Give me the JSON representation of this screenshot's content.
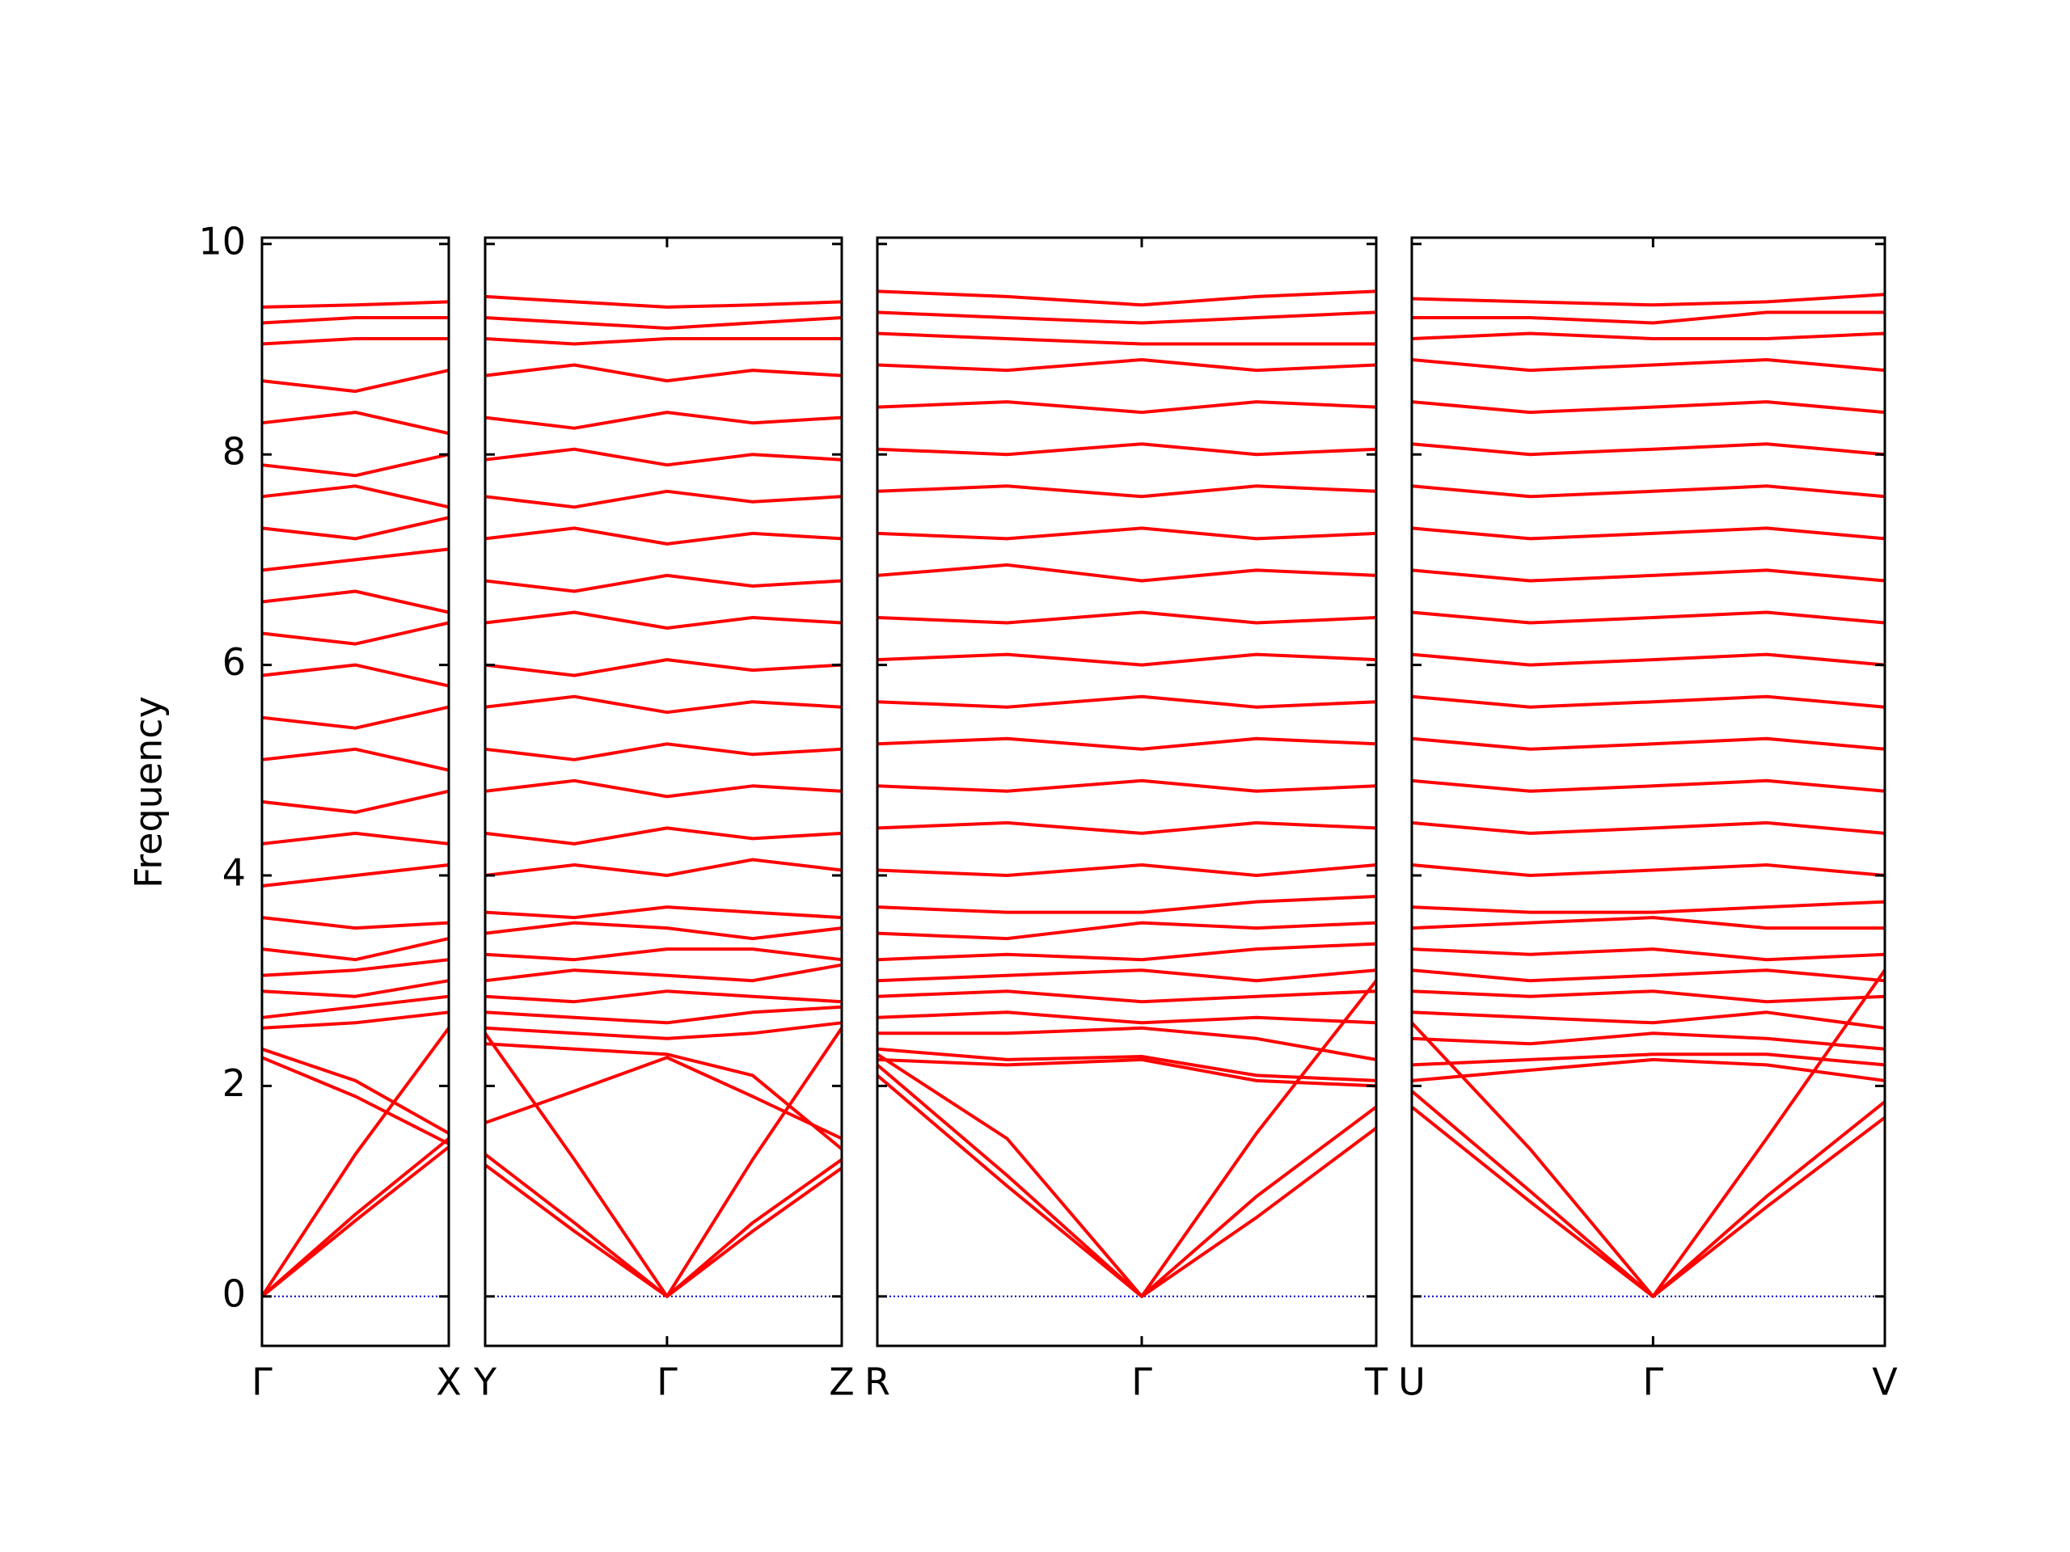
{
  "chart_data": {
    "type": "line",
    "y_label": "Frequency",
    "color": "#ff0000",
    "ylim": [
      -0.47,
      10.06
    ],
    "yticks": [
      0,
      2,
      4,
      6,
      8,
      10
    ],
    "hline": 0,
    "hline_color": "#0000cd",
    "panels": [
      {
        "x": [
          0,
          0.5,
          1
        ],
        "xticks": [
          {
            "value": 0,
            "label": "Γ"
          },
          {
            "value": 1,
            "label": "X"
          }
        ],
        "series": [
          {
            "values": [
              0,
              0.72,
              1.42
            ]
          },
          {
            "values": [
              0,
              0.78,
              1.5
            ]
          },
          {
            "values": [
              0,
              1.35,
              2.55
            ]
          },
          {
            "values": [
              2.27,
              1.9,
              1.45
            ]
          },
          {
            "values": [
              2.35,
              2.05,
              1.55
            ]
          },
          {
            "values": [
              2.55,
              2.6,
              2.7
            ]
          },
          {
            "values": [
              2.65,
              2.75,
              2.85
            ]
          },
          {
            "values": [
              2.9,
              2.85,
              3.0
            ]
          },
          {
            "values": [
              3.05,
              3.1,
              3.2
            ]
          },
          {
            "values": [
              3.3,
              3.2,
              3.4
            ]
          },
          {
            "values": [
              3.6,
              3.5,
              3.55
            ]
          },
          {
            "values": [
              3.9,
              4.0,
              4.1
            ]
          },
          {
            "values": [
              4.3,
              4.4,
              4.3
            ]
          },
          {
            "values": [
              4.7,
              4.6,
              4.8
            ]
          },
          {
            "values": [
              5.1,
              5.2,
              5.0
            ]
          },
          {
            "values": [
              5.5,
              5.4,
              5.6
            ]
          },
          {
            "values": [
              5.9,
              6.0,
              5.8
            ]
          },
          {
            "values": [
              6.3,
              6.2,
              6.4
            ]
          },
          {
            "values": [
              6.6,
              6.7,
              6.5
            ]
          },
          {
            "values": [
              6.9,
              7.0,
              7.1
            ]
          },
          {
            "values": [
              7.3,
              7.2,
              7.4
            ]
          },
          {
            "values": [
              7.6,
              7.7,
              7.5
            ]
          },
          {
            "values": [
              7.9,
              7.8,
              8.0
            ]
          },
          {
            "values": [
              8.3,
              8.4,
              8.2
            ]
          },
          {
            "values": [
              8.7,
              8.6,
              8.8
            ]
          },
          {
            "values": [
              9.05,
              9.1,
              9.1
            ]
          },
          {
            "values": [
              9.25,
              9.3,
              9.3
            ]
          },
          {
            "values": [
              9.4,
              9.42,
              9.45
            ]
          }
        ]
      },
      {
        "x": [
          0,
          0.25,
          0.51,
          0.75,
          1
        ],
        "xticks": [
          {
            "value": 0,
            "label": "Y"
          },
          {
            "value": 0.51,
            "label": "Γ"
          },
          {
            "value": 1,
            "label": "Z"
          }
        ],
        "series": [
          {
            "values": [
              1.25,
              0.62,
              0,
              0.62,
              1.22
            ]
          },
          {
            "values": [
              1.35,
              0.7,
              0,
              0.7,
              1.3
            ]
          },
          {
            "values": [
              2.5,
              1.3,
              0,
              1.3,
              2.55
            ]
          },
          {
            "values": [
              1.65,
              1.95,
              2.27,
              1.9,
              1.5
            ]
          },
          {
            "values": [
              2.4,
              2.35,
              2.3,
              2.1,
              1.4
            ]
          },
          {
            "values": [
              2.55,
              2.5,
              2.45,
              2.5,
              2.6
            ]
          },
          {
            "values": [
              2.7,
              2.65,
              2.6,
              2.7,
              2.75
            ]
          },
          {
            "values": [
              2.85,
              2.8,
              2.9,
              2.85,
              2.8
            ]
          },
          {
            "values": [
              3.0,
              3.1,
              3.05,
              3.0,
              3.15
            ]
          },
          {
            "values": [
              3.25,
              3.2,
              3.3,
              3.3,
              3.2
            ]
          },
          {
            "values": [
              3.45,
              3.55,
              3.5,
              3.4,
              3.5
            ]
          },
          {
            "values": [
              3.65,
              3.6,
              3.7,
              3.65,
              3.6
            ]
          },
          {
            "values": [
              4.0,
              4.1,
              4.0,
              4.15,
              4.05
            ]
          },
          {
            "values": [
              4.4,
              4.3,
              4.45,
              4.35,
              4.4
            ]
          },
          {
            "values": [
              4.8,
              4.9,
              4.75,
              4.85,
              4.8
            ]
          },
          {
            "values": [
              5.2,
              5.1,
              5.25,
              5.15,
              5.2
            ]
          },
          {
            "values": [
              5.6,
              5.7,
              5.55,
              5.65,
              5.6
            ]
          },
          {
            "values": [
              6.0,
              5.9,
              6.05,
              5.95,
              6.0
            ]
          },
          {
            "values": [
              6.4,
              6.5,
              6.35,
              6.45,
              6.4
            ]
          },
          {
            "values": [
              6.8,
              6.7,
              6.85,
              6.75,
              6.8
            ]
          },
          {
            "values": [
              7.2,
              7.3,
              7.15,
              7.25,
              7.2
            ]
          },
          {
            "values": [
              7.6,
              7.5,
              7.65,
              7.55,
              7.6
            ]
          },
          {
            "values": [
              7.95,
              8.05,
              7.9,
              8.0,
              7.95
            ]
          },
          {
            "values": [
              8.35,
              8.25,
              8.4,
              8.3,
              8.35
            ]
          },
          {
            "values": [
              8.75,
              8.85,
              8.7,
              8.8,
              8.75
            ]
          },
          {
            "values": [
              9.1,
              9.05,
              9.1,
              9.1,
              9.1
            ]
          },
          {
            "values": [
              9.3,
              9.25,
              9.2,
              9.25,
              9.3
            ]
          },
          {
            "values": [
              9.5,
              9.45,
              9.4,
              9.42,
              9.45
            ]
          }
        ]
      },
      {
        "x": [
          0,
          0.26,
          0.53,
          0.76,
          1
        ],
        "xticks": [
          {
            "value": 0,
            "label": "R"
          },
          {
            "value": 0.53,
            "label": "Γ"
          },
          {
            "value": 1,
            "label": "T"
          }
        ],
        "series": [
          {
            "values": [
              2.1,
              1.05,
              0,
              0.75,
              1.6
            ]
          },
          {
            "values": [
              2.2,
              1.15,
              0,
              0.95,
              1.8
            ]
          },
          {
            "values": [
              2.3,
              1.5,
              0,
              1.55,
              3.0
            ]
          },
          {
            "values": [
              2.25,
              2.2,
              2.25,
              2.05,
              2.0
            ]
          },
          {
            "values": [
              2.35,
              2.25,
              2.28,
              2.1,
              2.05
            ]
          },
          {
            "values": [
              2.5,
              2.5,
              2.55,
              2.45,
              2.25
            ]
          },
          {
            "values": [
              2.65,
              2.7,
              2.6,
              2.65,
              2.6
            ]
          },
          {
            "values": [
              2.85,
              2.9,
              2.8,
              2.85,
              2.9
            ]
          },
          {
            "values": [
              3.0,
              3.05,
              3.1,
              3.0,
              3.1
            ]
          },
          {
            "values": [
              3.2,
              3.25,
              3.2,
              3.3,
              3.35
            ]
          },
          {
            "values": [
              3.45,
              3.4,
              3.55,
              3.5,
              3.55
            ]
          },
          {
            "values": [
              3.7,
              3.65,
              3.65,
              3.75,
              3.8
            ]
          },
          {
            "values": [
              4.05,
              4.0,
              4.1,
              4.0,
              4.1
            ]
          },
          {
            "values": [
              4.45,
              4.5,
              4.4,
              4.5,
              4.45
            ]
          },
          {
            "values": [
              4.85,
              4.8,
              4.9,
              4.8,
              4.85
            ]
          },
          {
            "values": [
              5.25,
              5.3,
              5.2,
              5.3,
              5.25
            ]
          },
          {
            "values": [
              5.65,
              5.6,
              5.7,
              5.6,
              5.65
            ]
          },
          {
            "values": [
              6.05,
              6.1,
              6.0,
              6.1,
              6.05
            ]
          },
          {
            "values": [
              6.45,
              6.4,
              6.5,
              6.4,
              6.45
            ]
          },
          {
            "values": [
              6.85,
              6.95,
              6.8,
              6.9,
              6.85
            ]
          },
          {
            "values": [
              7.25,
              7.2,
              7.3,
              7.2,
              7.25
            ]
          },
          {
            "values": [
              7.65,
              7.7,
              7.6,
              7.7,
              7.65
            ]
          },
          {
            "values": [
              8.05,
              8.0,
              8.1,
              8.0,
              8.05
            ]
          },
          {
            "values": [
              8.45,
              8.5,
              8.4,
              8.5,
              8.45
            ]
          },
          {
            "values": [
              8.85,
              8.8,
              8.9,
              8.8,
              8.85
            ]
          },
          {
            "values": [
              9.15,
              9.1,
              9.05,
              9.05,
              9.05
            ]
          },
          {
            "values": [
              9.35,
              9.3,
              9.25,
              9.3,
              9.35
            ]
          },
          {
            "values": [
              9.55,
              9.5,
              9.42,
              9.5,
              9.55
            ]
          }
        ]
      },
      {
        "x": [
          0,
          0.25,
          0.51,
          0.75,
          1
        ],
        "xticks": [
          {
            "value": 0,
            "label": "U"
          },
          {
            "value": 0.51,
            "label": "Γ"
          },
          {
            "value": 1,
            "label": "V"
          }
        ],
        "series": [
          {
            "values": [
              1.8,
              0.9,
              0,
              0.85,
              1.7
            ]
          },
          {
            "values": [
              1.95,
              1.0,
              0,
              0.95,
              1.85
            ]
          },
          {
            "values": [
              2.6,
              1.4,
              0,
              1.5,
              3.1
            ]
          },
          {
            "values": [
              2.05,
              2.15,
              2.25,
              2.2,
              2.05
            ]
          },
          {
            "values": [
              2.2,
              2.25,
              2.3,
              2.3,
              2.2
            ]
          },
          {
            "values": [
              2.45,
              2.4,
              2.5,
              2.45,
              2.35
            ]
          },
          {
            "values": [
              2.7,
              2.65,
              2.6,
              2.7,
              2.55
            ]
          },
          {
            "values": [
              2.9,
              2.85,
              2.9,
              2.8,
              2.85
            ]
          },
          {
            "values": [
              3.1,
              3.0,
              3.05,
              3.1,
              3.0
            ]
          },
          {
            "values": [
              3.3,
              3.25,
              3.3,
              3.2,
              3.25
            ]
          },
          {
            "values": [
              3.5,
              3.55,
              3.6,
              3.5,
              3.5
            ]
          },
          {
            "values": [
              3.7,
              3.65,
              3.65,
              3.7,
              3.75
            ]
          },
          {
            "values": [
              4.1,
              4.0,
              4.05,
              4.1,
              4.0
            ]
          },
          {
            "values": [
              4.5,
              4.4,
              4.45,
              4.5,
              4.4
            ]
          },
          {
            "values": [
              4.9,
              4.8,
              4.85,
              4.9,
              4.8
            ]
          },
          {
            "values": [
              5.3,
              5.2,
              5.25,
              5.3,
              5.2
            ]
          },
          {
            "values": [
              5.7,
              5.6,
              5.65,
              5.7,
              5.6
            ]
          },
          {
            "values": [
              6.1,
              6.0,
              6.05,
              6.1,
              6.0
            ]
          },
          {
            "values": [
              6.5,
              6.4,
              6.45,
              6.5,
              6.4
            ]
          },
          {
            "values": [
              6.9,
              6.8,
              6.85,
              6.9,
              6.8
            ]
          },
          {
            "values": [
              7.3,
              7.2,
              7.25,
              7.3,
              7.2
            ]
          },
          {
            "values": [
              7.7,
              7.6,
              7.65,
              7.7,
              7.6
            ]
          },
          {
            "values": [
              8.1,
              8.0,
              8.05,
              8.1,
              8.0
            ]
          },
          {
            "values": [
              8.5,
              8.4,
              8.45,
              8.5,
              8.4
            ]
          },
          {
            "values": [
              8.9,
              8.8,
              8.85,
              8.9,
              8.8
            ]
          },
          {
            "values": [
              9.1,
              9.15,
              9.1,
              9.1,
              9.15
            ]
          },
          {
            "values": [
              9.3,
              9.3,
              9.25,
              9.35,
              9.35
            ]
          },
          {
            "values": [
              9.48,
              9.45,
              9.42,
              9.45,
              9.52
            ]
          }
        ]
      }
    ]
  }
}
